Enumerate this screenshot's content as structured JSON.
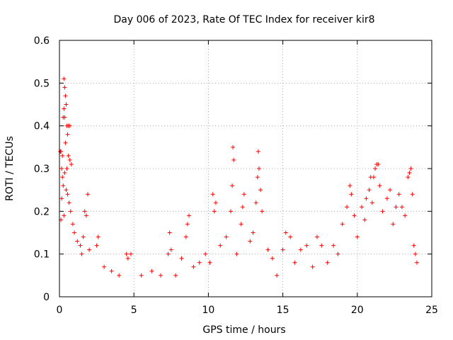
{
  "chart_data": {
    "type": "scatter",
    "title": "Day 006 of 2023, Rate Of TEC Index for receiver kir8",
    "xlabel": "GPS time / hours",
    "ylabel": "ROTI / TECUs",
    "xlim": [
      0,
      25
    ],
    "ylim": [
      0,
      0.6
    ],
    "xticks": [
      0,
      5,
      10,
      15,
      20,
      25
    ],
    "yticks": [
      0,
      0.1,
      0.2,
      0.3,
      0.4,
      0.5,
      0.6
    ],
    "grid": true,
    "marker": "+",
    "color": "#ff0000",
    "series": [
      {
        "points": [
          [
            0.05,
            0.34
          ],
          [
            0.1,
            0.34
          ],
          [
            0.15,
            0.3
          ],
          [
            0.2,
            0.28
          ],
          [
            0.25,
            0.42
          ],
          [
            0.3,
            0.51
          ],
          [
            0.35,
            0.49
          ],
          [
            0.4,
            0.47
          ],
          [
            0.45,
            0.45
          ],
          [
            0.3,
            0.44
          ],
          [
            0.35,
            0.42
          ],
          [
            0.5,
            0.4
          ],
          [
            0.6,
            0.4
          ],
          [
            0.7,
            0.4
          ],
          [
            0.55,
            0.38
          ],
          [
            0.4,
            0.36
          ],
          [
            0.2,
            0.33
          ],
          [
            0.6,
            0.33
          ],
          [
            0.7,
            0.32
          ],
          [
            0.8,
            0.31
          ],
          [
            0.5,
            0.3
          ],
          [
            0.35,
            0.29
          ],
          [
            0.25,
            0.26
          ],
          [
            0.45,
            0.25
          ],
          [
            0.55,
            0.24
          ],
          [
            0.15,
            0.23
          ],
          [
            0.65,
            0.22
          ],
          [
            0.75,
            0.2
          ],
          [
            0.3,
            0.19
          ],
          [
            0.1,
            0.18
          ],
          [
            0.9,
            0.17
          ],
          [
            1.0,
            0.15
          ],
          [
            1.2,
            0.13
          ],
          [
            1.4,
            0.12
          ],
          [
            1.7,
            0.2
          ],
          [
            1.8,
            0.19
          ],
          [
            1.9,
            0.24
          ],
          [
            1.6,
            0.14
          ],
          [
            1.5,
            0.1
          ],
          [
            2.0,
            0.11
          ],
          [
            2.5,
            0.12
          ],
          [
            2.6,
            0.14
          ],
          [
            3.0,
            0.07
          ],
          [
            3.5,
            0.06
          ],
          [
            4.0,
            0.05
          ],
          [
            4.5,
            0.1
          ],
          [
            4.6,
            0.09
          ],
          [
            4.8,
            0.1
          ],
          [
            5.5,
            0.05
          ],
          [
            6.2,
            0.06
          ],
          [
            6.8,
            0.05
          ],
          [
            7.3,
            0.1
          ],
          [
            7.4,
            0.15
          ],
          [
            7.5,
            0.11
          ],
          [
            7.8,
            0.05
          ],
          [
            8.2,
            0.09
          ],
          [
            8.5,
            0.14
          ],
          [
            8.6,
            0.17
          ],
          [
            8.7,
            0.19
          ],
          [
            9.0,
            0.07
          ],
          [
            9.4,
            0.08
          ],
          [
            9.8,
            0.1
          ],
          [
            10.1,
            0.08
          ],
          [
            10.3,
            0.24
          ],
          [
            10.4,
            0.2
          ],
          [
            10.5,
            0.22
          ],
          [
            10.8,
            0.12
          ],
          [
            11.2,
            0.14
          ],
          [
            11.5,
            0.2
          ],
          [
            11.6,
            0.26
          ],
          [
            11.65,
            0.35
          ],
          [
            11.7,
            0.32
          ],
          [
            11.9,
            0.1
          ],
          [
            12.2,
            0.17
          ],
          [
            12.3,
            0.21
          ],
          [
            12.4,
            0.24
          ],
          [
            12.8,
            0.13
          ],
          [
            13.0,
            0.15
          ],
          [
            13.2,
            0.22
          ],
          [
            13.3,
            0.28
          ],
          [
            13.35,
            0.34
          ],
          [
            13.4,
            0.3
          ],
          [
            13.5,
            0.25
          ],
          [
            13.6,
            0.2
          ],
          [
            14.0,
            0.11
          ],
          [
            14.3,
            0.09
          ],
          [
            14.6,
            0.05
          ],
          [
            15.0,
            0.11
          ],
          [
            15.2,
            0.15
          ],
          [
            15.5,
            0.14
          ],
          [
            15.8,
            0.08
          ],
          [
            16.2,
            0.11
          ],
          [
            16.6,
            0.12
          ],
          [
            17.0,
            0.07
          ],
          [
            17.3,
            0.14
          ],
          [
            17.6,
            0.12
          ],
          [
            18.0,
            0.08
          ],
          [
            18.4,
            0.12
          ],
          [
            18.7,
            0.1
          ],
          [
            19.0,
            0.17
          ],
          [
            19.3,
            0.21
          ],
          [
            19.5,
            0.26
          ],
          [
            19.6,
            0.24
          ],
          [
            19.8,
            0.19
          ],
          [
            20.0,
            0.14
          ],
          [
            20.3,
            0.21
          ],
          [
            20.5,
            0.18
          ],
          [
            20.6,
            0.23
          ],
          [
            20.8,
            0.25
          ],
          [
            20.9,
            0.28
          ],
          [
            21.0,
            0.22
          ],
          [
            21.1,
            0.28
          ],
          [
            21.2,
            0.3
          ],
          [
            21.3,
            0.31
          ],
          [
            21.4,
            0.31
          ],
          [
            21.5,
            0.26
          ],
          [
            21.7,
            0.2
          ],
          [
            22.0,
            0.23
          ],
          [
            22.2,
            0.25
          ],
          [
            22.4,
            0.17
          ],
          [
            22.6,
            0.21
          ],
          [
            22.8,
            0.24
          ],
          [
            23.0,
            0.21
          ],
          [
            23.2,
            0.19
          ],
          [
            23.4,
            0.28
          ],
          [
            23.5,
            0.29
          ],
          [
            23.6,
            0.3
          ],
          [
            23.7,
            0.24
          ],
          [
            23.8,
            0.12
          ],
          [
            23.9,
            0.1
          ],
          [
            24.0,
            0.08
          ]
        ]
      }
    ]
  }
}
